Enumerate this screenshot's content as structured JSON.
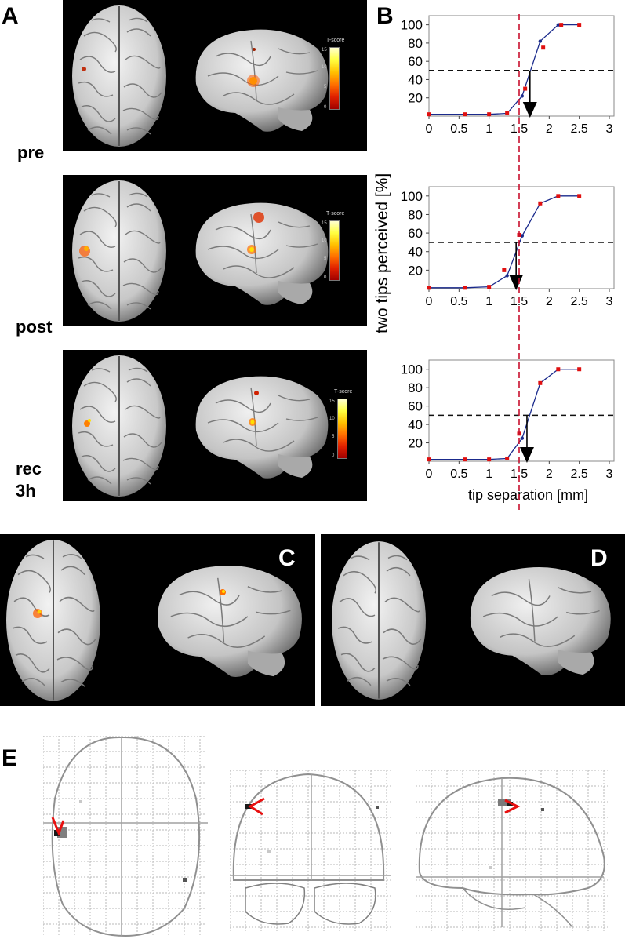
{
  "figure": {
    "panel_labels": {
      "a": "A",
      "b": "B",
      "c": "C",
      "d": "D",
      "e": "E"
    },
    "session_labels": [
      "pre",
      "post",
      "rec\n3h"
    ],
    "colorbar": {
      "title": "T-score",
      "ticks": [
        "15",
        "10",
        "5",
        "0"
      ]
    },
    "ylabel": "two tips perceived [%]",
    "xlabel": "tip separation [mm]",
    "vertical_reference_mm": 1.5,
    "threshold_percent": 50,
    "colors": {
      "line": "#1a2a8c",
      "marker": "#e01010",
      "reference": "#c8102e",
      "cortex": "#dcdcdc",
      "activation": "#ff5a00"
    }
  },
  "chart_data": [
    {
      "type": "line",
      "panel": "pre",
      "x": [
        0,
        0.6,
        1.0,
        1.3,
        1.55,
        1.85,
        2.15,
        2.5
      ],
      "y": [
        2,
        2,
        2,
        3,
        22,
        82,
        100,
        100
      ],
      "markers_x": [
        0,
        0.6,
        1.0,
        1.3,
        1.6,
        1.9,
        2.2,
        2.5
      ],
      "markers_y": [
        2,
        2,
        2,
        3,
        30,
        75,
        100,
        100
      ],
      "threshold_x": 1.68,
      "xlim": [
        0,
        3
      ],
      "ylim": [
        0,
        110
      ],
      "xticks": [
        "0",
        "0.5",
        "1",
        "1.5",
        "2",
        "2.5",
        "3"
      ],
      "yticks": [
        "20",
        "40",
        "60",
        "80",
        "100"
      ]
    },
    {
      "type": "line",
      "panel": "post",
      "x": [
        0,
        0.6,
        1.0,
        1.3,
        1.55,
        1.85,
        2.15,
        2.5
      ],
      "y": [
        1,
        1,
        2,
        14,
        57,
        92,
        100,
        100
      ],
      "markers_x": [
        0,
        0.6,
        1.0,
        1.25,
        1.5,
        1.85,
        2.15,
        2.5
      ],
      "markers_y": [
        1,
        1,
        2,
        20,
        58,
        92,
        100,
        100
      ],
      "threshold_x": 1.45,
      "xlim": [
        0,
        3
      ],
      "ylim": [
        0,
        110
      ],
      "xticks": [
        "0",
        "0.5",
        "1",
        "1.5",
        "2",
        "2.5",
        "3"
      ],
      "yticks": [
        "20",
        "40",
        "60",
        "80",
        "100"
      ]
    },
    {
      "type": "line",
      "panel": "rec 3h",
      "x": [
        0,
        0.6,
        1.0,
        1.3,
        1.55,
        1.85,
        2.15,
        2.5
      ],
      "y": [
        2,
        2,
        2,
        3,
        25,
        85,
        100,
        100
      ],
      "markers_x": [
        0,
        0.6,
        1.0,
        1.3,
        1.5,
        1.85,
        2.15,
        2.5
      ],
      "markers_y": [
        2,
        2,
        2,
        3,
        30,
        85,
        100,
        100
      ],
      "threshold_x": 1.63,
      "xlim": [
        0,
        3
      ],
      "ylim": [
        0,
        110
      ],
      "xticks": [
        "0",
        "0.5",
        "1",
        "1.5",
        "2",
        "2.5",
        "3"
      ],
      "yticks": [
        "20",
        "40",
        "60",
        "80",
        "100"
      ]
    }
  ]
}
